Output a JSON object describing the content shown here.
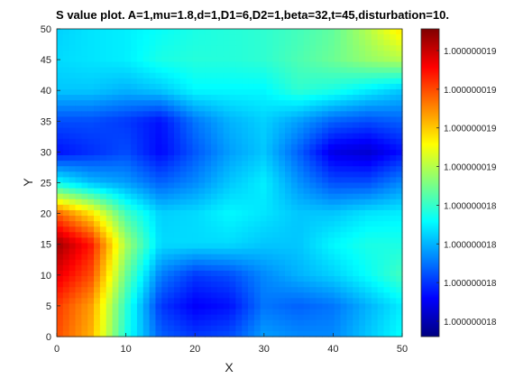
{
  "chart_data": {
    "type": "heatmap",
    "title": "S value plot. A=1,mu=1.8,d=1,D1=6,D2=1,beta=32,t=45,disturbation=10.",
    "xlabel": "X",
    "ylabel": "Y",
    "xlim": [
      0,
      50
    ],
    "ylim": [
      0,
      50
    ],
    "xticks": [
      "0",
      "10",
      "20",
      "30",
      "40",
      "50"
    ],
    "yticks": [
      "0",
      "5",
      "10",
      "15",
      "20",
      "25",
      "30",
      "35",
      "40",
      "45",
      "50"
    ],
    "colormap": "jet",
    "colorbar": {
      "ticks": [
        "1.000000018",
        "1.000000018",
        "1.000000018",
        "1.000000018",
        "1.000000019",
        "1.000000019",
        "1.000000019",
        "1.000000019"
      ]
    },
    "field_levels_0_to_1": {
      "x": [
        0,
        5,
        10,
        15,
        20,
        25,
        30,
        35,
        40,
        45,
        50
      ],
      "y": [
        50,
        45,
        40,
        35,
        30,
        25,
        20,
        15,
        10,
        5,
        0
      ],
      "values": [
        [
          0.33,
          0.35,
          0.36,
          0.38,
          0.4,
          0.41,
          0.42,
          0.44,
          0.47,
          0.55,
          0.65
        ],
        [
          0.34,
          0.35,
          0.36,
          0.4,
          0.41,
          0.41,
          0.42,
          0.45,
          0.48,
          0.52,
          0.55
        ],
        [
          0.32,
          0.32,
          0.3,
          0.32,
          0.37,
          0.37,
          0.37,
          0.42,
          0.4,
          0.36,
          0.32
        ],
        [
          0.2,
          0.2,
          0.18,
          0.14,
          0.24,
          0.3,
          0.33,
          0.28,
          0.22,
          0.2,
          0.22
        ],
        [
          0.14,
          0.17,
          0.2,
          0.13,
          0.21,
          0.28,
          0.32,
          0.22,
          0.1,
          0.08,
          0.14
        ],
        [
          0.38,
          0.31,
          0.28,
          0.22,
          0.26,
          0.32,
          0.36,
          0.27,
          0.2,
          0.2,
          0.26
        ],
        [
          0.78,
          0.65,
          0.44,
          0.33,
          0.34,
          0.37,
          0.35,
          0.32,
          0.32,
          0.35,
          0.36
        ],
        [
          0.97,
          0.85,
          0.54,
          0.34,
          0.34,
          0.34,
          0.32,
          0.32,
          0.37,
          0.4,
          0.4
        ],
        [
          0.9,
          0.8,
          0.48,
          0.25,
          0.18,
          0.2,
          0.26,
          0.3,
          0.33,
          0.38,
          0.44
        ],
        [
          0.82,
          0.72,
          0.42,
          0.18,
          0.12,
          0.14,
          0.24,
          0.22,
          0.24,
          0.3,
          0.36
        ],
        [
          0.8,
          0.7,
          0.4,
          0.22,
          0.18,
          0.2,
          0.28,
          0.26,
          0.26,
          0.32,
          0.38
        ]
      ]
    }
  }
}
